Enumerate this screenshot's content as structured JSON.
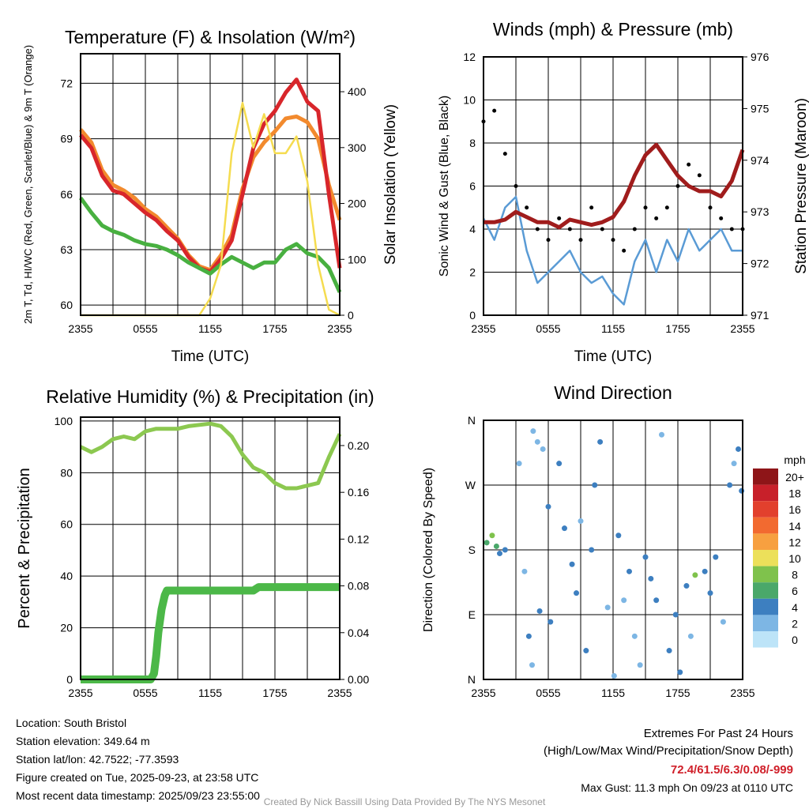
{
  "chart_data": [
    {
      "type": "line",
      "title": "Temperature (F) & Insolation (W/m²)",
      "xlabel": "Time (UTC)",
      "ylabel": "2m T, Td, HI/WC (Red, Green, Scarlet/Blue) & 9m T (Orange)",
      "y2label": "Solar Insolation (Yellow)",
      "xticks": [
        "2355",
        "0555",
        "1155",
        "1755",
        "2355"
      ],
      "yticks": [
        "60",
        "63",
        "66",
        "69",
        "72"
      ],
      "y2ticks": [
        "0",
        "100",
        "200",
        "300",
        "400"
      ],
      "ylim": [
        59.45,
        73.6
      ],
      "y2lim": [
        0,
        468
      ],
      "hours": [
        0,
        1,
        2,
        3,
        4,
        5,
        6,
        7,
        8,
        9,
        10,
        11,
        12,
        13,
        14,
        15,
        16,
        17,
        18,
        19,
        20,
        21,
        22,
        23,
        24
      ],
      "series": [
        {
          "name": "9m T",
          "color": "#f28a2e",
          "axis": "left",
          "values": [
            69.5,
            68.8,
            67.3,
            66.5,
            66.2,
            65.8,
            65.2,
            64.8,
            64.2,
            63.6,
            62.7,
            62.1,
            61.9,
            62.7,
            63.8,
            66.3,
            68,
            68.8,
            69.4,
            70.1,
            70.2,
            69.9,
            69,
            66.5,
            64.6
          ]
        },
        {
          "name": "2m T",
          "color": "#d8262b",
          "axis": "left",
          "values": [
            69.2,
            68.5,
            67,
            66.2,
            66,
            65.5,
            65,
            64.6,
            64,
            63.5,
            62.6,
            62,
            61.8,
            62.5,
            63.5,
            66,
            68.5,
            69.8,
            70.5,
            71.5,
            72.2,
            71,
            70.5,
            66,
            62
          ]
        },
        {
          "name": "Td",
          "color": "#48b040",
          "axis": "left",
          "values": [
            65.8,
            65,
            64.3,
            64,
            63.8,
            63.5,
            63.3,
            63.2,
            63,
            62.7,
            62.3,
            62,
            61.7,
            62.2,
            62.6,
            62.3,
            62,
            62.3,
            62.3,
            63,
            63.3,
            62.8,
            62.6,
            62,
            60.7
          ]
        },
        {
          "name": "Solar",
          "color": "#f5dc50",
          "axis": "right",
          "values": [
            0,
            0,
            0,
            0,
            0,
            0,
            0,
            0,
            0,
            0,
            0,
            0,
            30,
            90,
            290,
            380,
            300,
            360,
            290,
            290,
            320,
            240,
            90,
            10,
            0
          ]
        }
      ]
    },
    {
      "type": "line",
      "title": "Winds (mph) & Pressure (mb)",
      "xlabel": "Time (UTC)",
      "ylabel": "Sonic Wind & Gust (Blue, Black)",
      "y2label": "Station Pressure (Maroon)",
      "xticks": [
        "2355",
        "0555",
        "1155",
        "1755",
        "2355"
      ],
      "yticks": [
        "0",
        "2",
        "4",
        "6",
        "8",
        "10",
        "12"
      ],
      "y2ticks": [
        "971",
        "972",
        "973",
        "974",
        "975",
        "976"
      ],
      "ylim": [
        0,
        12
      ],
      "y2lim": [
        971,
        976
      ],
      "hours": [
        0,
        1,
        2,
        3,
        4,
        5,
        6,
        7,
        8,
        9,
        10,
        11,
        12,
        13,
        14,
        15,
        16,
        17,
        18,
        19,
        20,
        21,
        22,
        23,
        24
      ],
      "series": [
        {
          "name": "Wind",
          "color": "#5a9bd5",
          "axis": "left",
          "values": [
            4.5,
            3.5,
            5,
            5.5,
            3,
            1.5,
            2,
            2.5,
            3,
            2,
            1.5,
            1.8,
            1,
            0.5,
            2.5,
            3.5,
            2,
            3.5,
            2.5,
            4,
            3,
            3.5,
            4,
            3,
            3
          ]
        },
        {
          "name": "Gust",
          "color": "#000000",
          "axis": "left",
          "kind": "scatter",
          "values": [
            9,
            9.5,
            7.5,
            6,
            5,
            4,
            3.5,
            4.5,
            4,
            3.5,
            5,
            4,
            3.5,
            3,
            4,
            5,
            4.5,
            5,
            6,
            7,
            6.5,
            5,
            4.5,
            4,
            4
          ]
        },
        {
          "name": "Pressure",
          "color": "#a01c1c",
          "axis": "right",
          "values": [
            972.8,
            972.8,
            972.85,
            973,
            972.9,
            972.8,
            972.8,
            972.7,
            972.85,
            972.8,
            972.75,
            972.8,
            972.9,
            973.2,
            973.7,
            974.1,
            974.3,
            974,
            973.7,
            973.5,
            973.4,
            973.4,
            973.3,
            973.6,
            974.2
          ]
        }
      ]
    },
    {
      "type": "line",
      "title": "Relative Humidity (%) & Precipitation (in)",
      "xlabel": "",
      "ylabel": "Percent & Precipitation",
      "xticks": [
        "2355",
        "0555",
        "1155",
        "1755",
        "2355"
      ],
      "yticks": [
        "0",
        "20",
        "40",
        "60",
        "80",
        "100"
      ],
      "y2ticks": [
        "0.00",
        "0.04",
        "0.08",
        "0.12",
        "0.16",
        "0.20"
      ],
      "ylim": [
        0,
        101.5
      ],
      "y2lim": [
        0,
        0.2243
      ],
      "hours": [
        0,
        1,
        2,
        3,
        4,
        5,
        6,
        7,
        8,
        9,
        10,
        11,
        12,
        13,
        14,
        15,
        16,
        17,
        18,
        19,
        20,
        21,
        22,
        23,
        24
      ],
      "series": [
        {
          "name": "RH",
          "color": "#8cc850",
          "axis": "left",
          "values": [
            90,
            88,
            90,
            93,
            94,
            93,
            96,
            97,
            97,
            97,
            98,
            98.5,
            99,
            98,
            94,
            87,
            82,
            80,
            76,
            74,
            74,
            75,
            76,
            86,
            95
          ]
        },
        {
          "name": "Precip",
          "color": "#4cb848",
          "axis": "right",
          "x": [
            0,
            6.5,
            6.8,
            7,
            7.2,
            7.5,
            7.8,
            8,
            9,
            12,
            16,
            16.5,
            20,
            24
          ],
          "values": [
            0,
            0,
            0.005,
            0.02,
            0.04,
            0.06,
            0.072,
            0.076,
            0.076,
            0.076,
            0.076,
            0.079,
            0.079,
            0.079
          ]
        }
      ]
    },
    {
      "type": "scatter",
      "title": "Wind Direction",
      "ylabel": "Direction (Colored By Speed)",
      "xticks": [
        "2355",
        "0555",
        "1155",
        "1755",
        "2355"
      ],
      "yticks": [
        "N",
        "E",
        "S",
        "W",
        "N"
      ],
      "ylim": [
        0,
        360
      ],
      "legend_title": "mph",
      "legend_labels": [
        "20+",
        "18",
        "16",
        "14",
        "12",
        "10",
        "8",
        "6",
        "4",
        "2",
        "0"
      ],
      "legend_colors": [
        "#8e1518",
        "#c8202a",
        "#e2402d",
        "#f26a30",
        "#f7a040",
        "#ece05a",
        "#7fc24c",
        "#4aa86a",
        "#3d7fc0",
        "#7db6e4",
        "#bde4f8"
      ],
      "points": [
        [
          0.3,
          190,
          6
        ],
        [
          0.8,
          200,
          7
        ],
        [
          1.2,
          185,
          5
        ],
        [
          1.5,
          175,
          4
        ],
        [
          2,
          180,
          4
        ],
        [
          3.3,
          300,
          1
        ],
        [
          3.8,
          150,
          2
        ],
        [
          4.2,
          60,
          3
        ],
        [
          4.5,
          20,
          2
        ],
        [
          4.6,
          345,
          2
        ],
        [
          5,
          330,
          1
        ],
        [
          5.2,
          95,
          3
        ],
        [
          5.5,
          320,
          1
        ],
        [
          6,
          240,
          3
        ],
        [
          6.2,
          80,
          4
        ],
        [
          7,
          300,
          3
        ],
        [
          7.5,
          210,
          3
        ],
        [
          8.2,
          160,
          4
        ],
        [
          8.6,
          120,
          4
        ],
        [
          9,
          220,
          2
        ],
        [
          9.5,
          40,
          3
        ],
        [
          10,
          180,
          4
        ],
        [
          10.3,
          270,
          4
        ],
        [
          10.8,
          330,
          3
        ],
        [
          11.5,
          100,
          1
        ],
        [
          12.1,
          5,
          1
        ],
        [
          12.5,
          200,
          4
        ],
        [
          13,
          110,
          2
        ],
        [
          13.5,
          150,
          3
        ],
        [
          14,
          60,
          1
        ],
        [
          14.5,
          20,
          2
        ],
        [
          15,
          170,
          4
        ],
        [
          15.5,
          140,
          4
        ],
        [
          16,
          110,
          3
        ],
        [
          16.5,
          340,
          1
        ],
        [
          17.2,
          40,
          3
        ],
        [
          17.8,
          90,
          4
        ],
        [
          18.2,
          10,
          4
        ],
        [
          18.8,
          130,
          3
        ],
        [
          19.2,
          60,
          2
        ],
        [
          19.6,
          145,
          7
        ],
        [
          20.5,
          150,
          4
        ],
        [
          21,
          120,
          3
        ],
        [
          21.5,
          170,
          4
        ],
        [
          22.2,
          80,
          2
        ],
        [
          22.8,
          270,
          3
        ],
        [
          23.2,
          300,
          2
        ],
        [
          23.6,
          320,
          4
        ],
        [
          23.9,
          262,
          3
        ]
      ]
    }
  ],
  "footer": {
    "location": "Location: South Bristol",
    "elevation": "Station elevation: 349.64 m",
    "latlon": "Station lat/lon: 42.7522; -77.3593",
    "created": "Figure created on Tue, 2025-09-23, at 23:58 UTC",
    "recent": "Most recent data timestamp: 2025/09/23 23:55:00",
    "extremes_title": "Extremes For Past 24 Hours",
    "extremes_sub": "(High/Low/Max Wind/Precipitation/Snow Depth)",
    "extremes_values": "72.4/61.5/6.3/0.08/-999",
    "max_gust": "Max Gust: 11.3 mph On 09/23 at 0110 UTC",
    "credit": "Created By Nick Bassill Using Data Provided By The NYS Mesonet"
  }
}
